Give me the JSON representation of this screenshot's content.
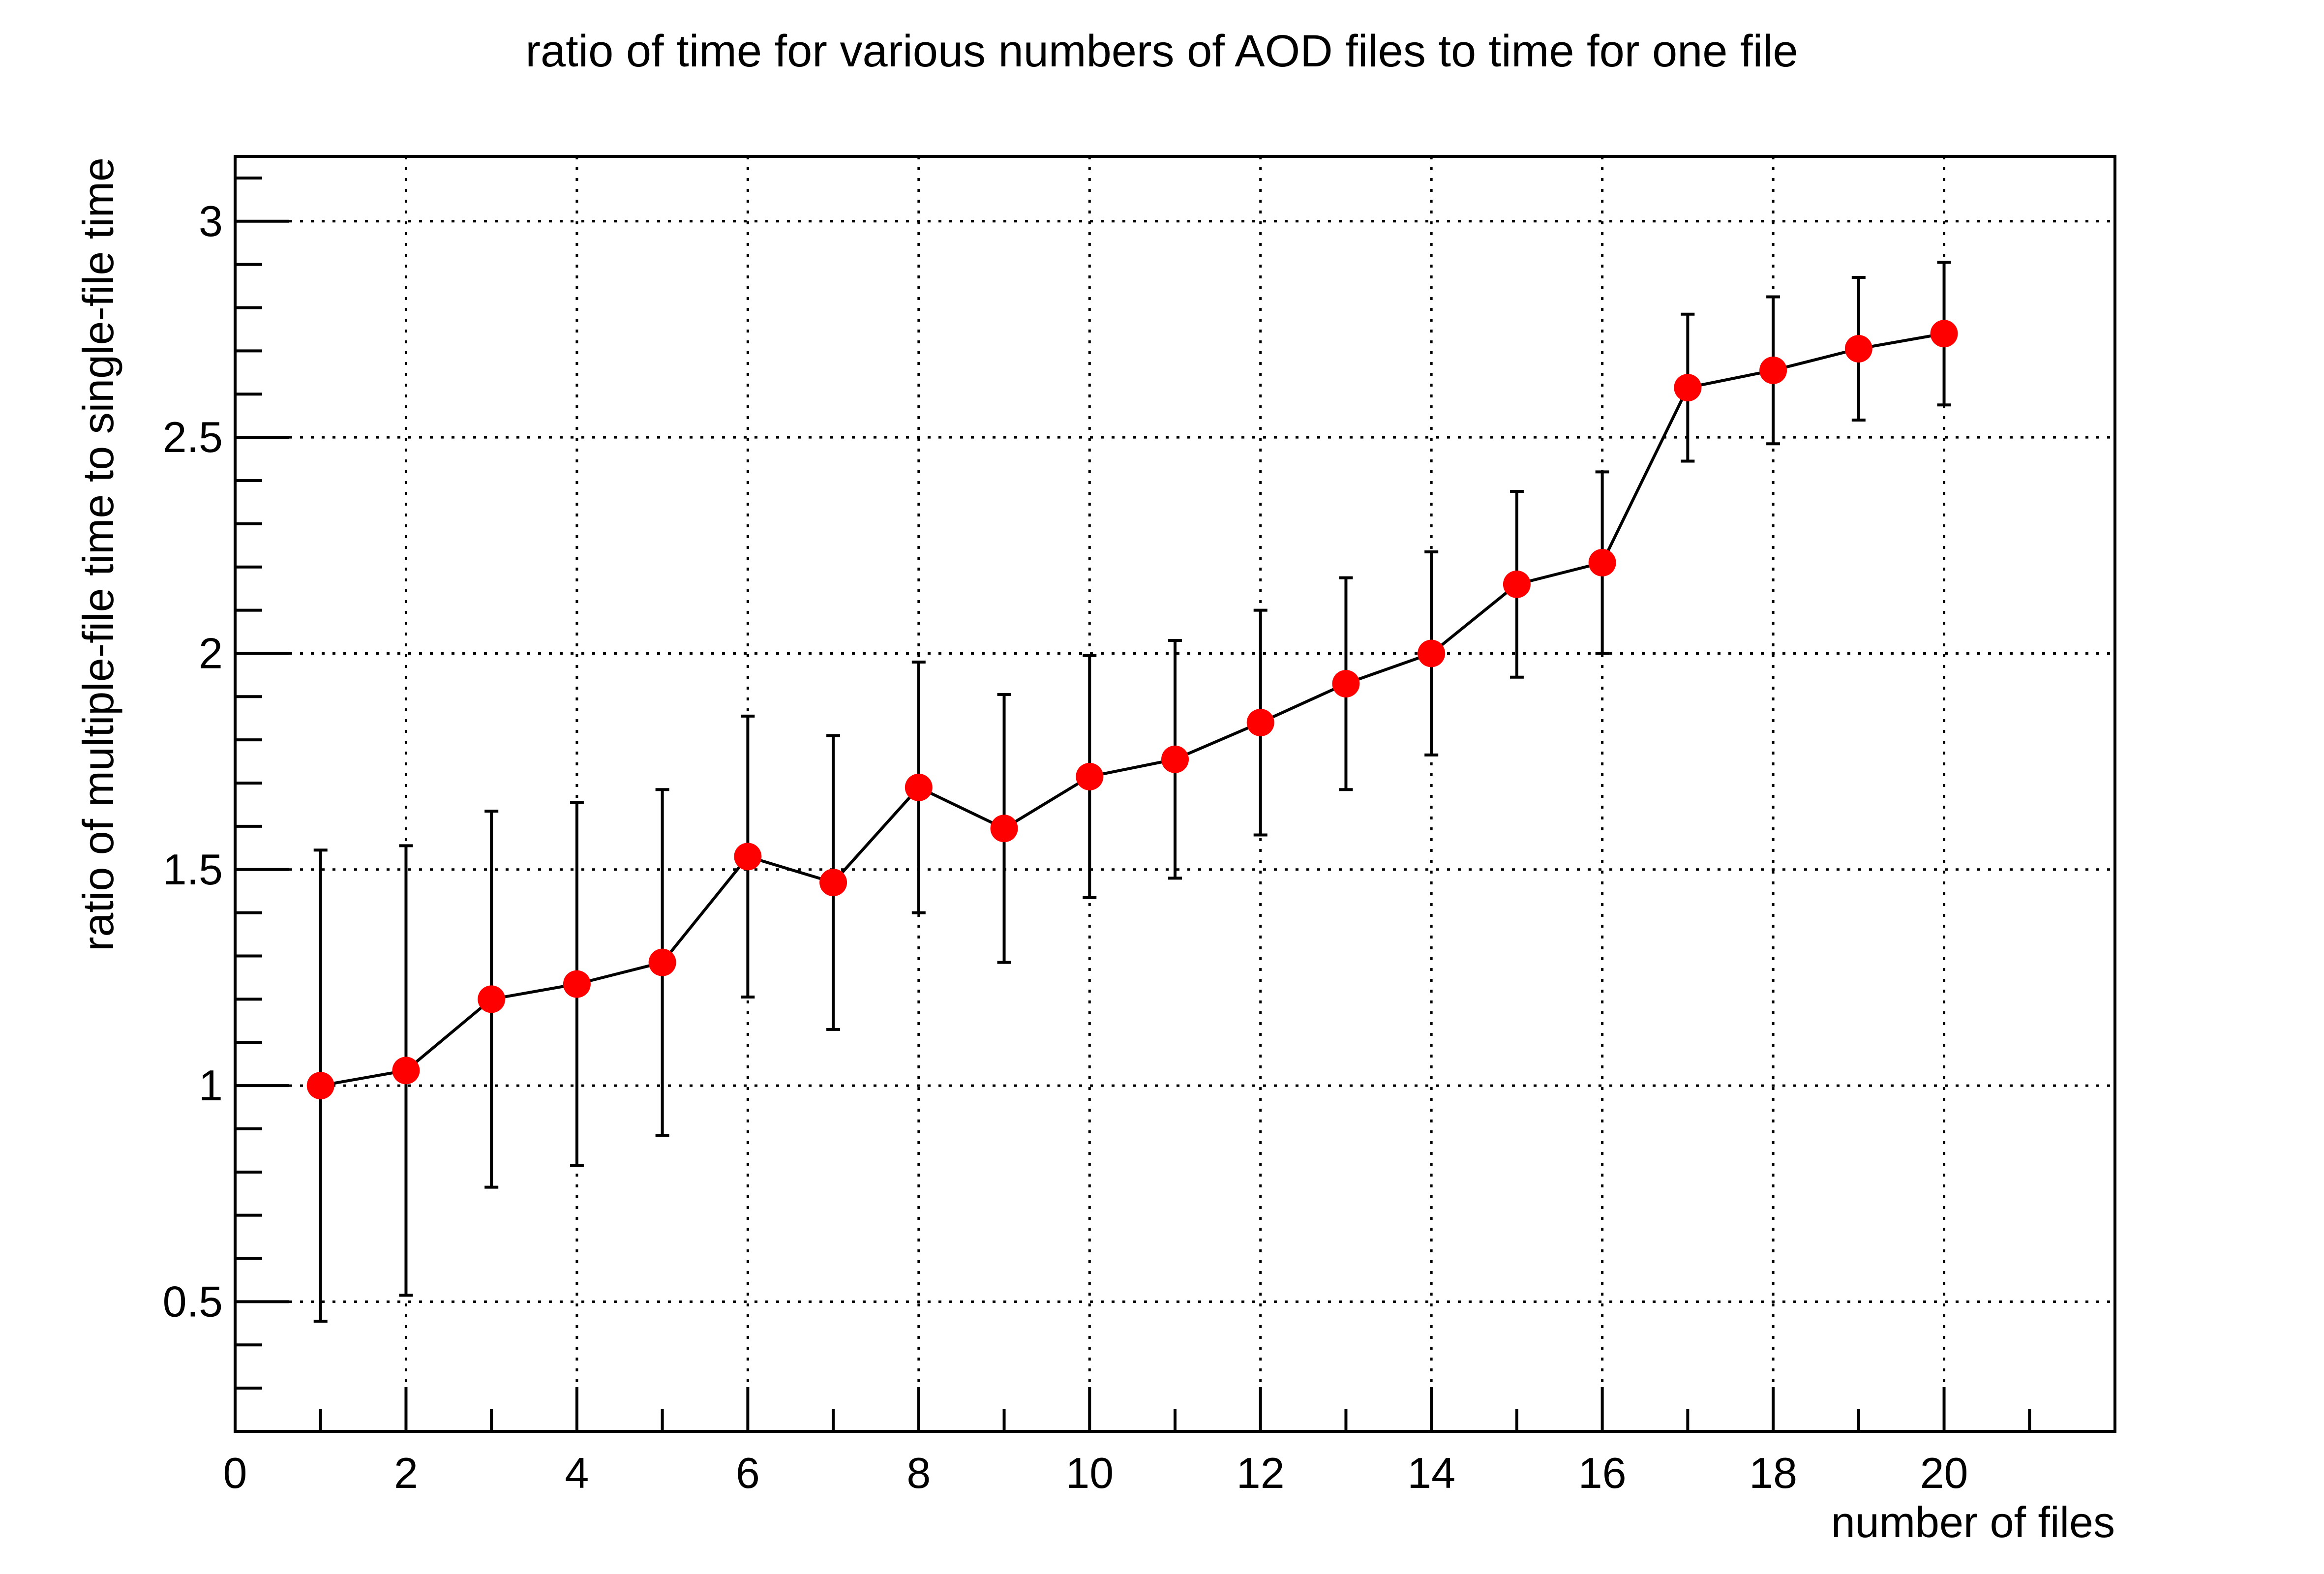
{
  "chart_data": {
    "type": "scatter",
    "title": "ratio of time for various numbers of AOD files to time for one file",
    "xlabel": "number of files",
    "ylabel": "ratio of multiple-file time to single-file time",
    "xlim": [
      0,
      22
    ],
    "ylim": [
      0.2,
      3.15
    ],
    "x_ticks": [
      {
        "value": 0,
        "label": "0"
      },
      {
        "value": 2,
        "label": "2"
      },
      {
        "value": 4,
        "label": "4"
      },
      {
        "value": 6,
        "label": "6"
      },
      {
        "value": 8,
        "label": "8"
      },
      {
        "value": 10,
        "label": "10"
      },
      {
        "value": 12,
        "label": "12"
      },
      {
        "value": 14,
        "label": "14"
      },
      {
        "value": 16,
        "label": "16"
      },
      {
        "value": 18,
        "label": "18"
      },
      {
        "value": 20,
        "label": "20"
      }
    ],
    "y_ticks": [
      {
        "value": 0.5,
        "label": "0.5"
      },
      {
        "value": 1,
        "label": "1"
      },
      {
        "value": 1.5,
        "label": "1.5"
      },
      {
        "value": 2,
        "label": "2"
      },
      {
        "value": 2.5,
        "label": "2.5"
      },
      {
        "value": 3,
        "label": "3"
      }
    ],
    "grid": true,
    "grid_style": "dotted",
    "connect_points": true,
    "marker_color": "#ff0000",
    "line_color": "#000000",
    "series": [
      {
        "points": [
          {
            "x": 1,
            "y": 1.0,
            "err_low": 0.455,
            "err_high": 1.545
          },
          {
            "x": 2,
            "y": 1.035,
            "err_low": 0.515,
            "err_high": 1.555
          },
          {
            "x": 3,
            "y": 1.2,
            "err_low": 0.765,
            "err_high": 1.635
          },
          {
            "x": 4,
            "y": 1.235,
            "err_low": 0.815,
            "err_high": 1.655
          },
          {
            "x": 5,
            "y": 1.285,
            "err_low": 0.885,
            "err_high": 1.685
          },
          {
            "x": 6,
            "y": 1.53,
            "err_low": 1.205,
            "err_high": 1.855
          },
          {
            "x": 7,
            "y": 1.47,
            "err_low": 1.13,
            "err_high": 1.81
          },
          {
            "x": 8,
            "y": 1.69,
            "err_low": 1.4,
            "err_high": 1.98
          },
          {
            "x": 9,
            "y": 1.595,
            "err_low": 1.285,
            "err_high": 1.905
          },
          {
            "x": 10,
            "y": 1.715,
            "err_low": 1.435,
            "err_high": 1.995
          },
          {
            "x": 11,
            "y": 1.755,
            "err_low": 1.48,
            "err_high": 2.03
          },
          {
            "x": 12,
            "y": 1.84,
            "err_low": 1.58,
            "err_high": 2.1
          },
          {
            "x": 13,
            "y": 1.93,
            "err_low": 1.685,
            "err_high": 2.175
          },
          {
            "x": 14,
            "y": 2.0,
            "err_low": 1.765,
            "err_high": 2.235
          },
          {
            "x": 15,
            "y": 2.16,
            "err_low": 1.945,
            "err_high": 2.375
          },
          {
            "x": 16,
            "y": 2.21,
            "err_low": 2.0,
            "err_high": 2.42
          },
          {
            "x": 17,
            "y": 2.615,
            "err_low": 2.445,
            "err_high": 2.785
          },
          {
            "x": 18,
            "y": 2.655,
            "err_low": 2.485,
            "err_high": 2.825
          },
          {
            "x": 19,
            "y": 2.705,
            "err_low": 2.54,
            "err_high": 2.87
          },
          {
            "x": 20,
            "y": 2.74,
            "err_low": 2.575,
            "err_high": 2.905
          }
        ]
      }
    ]
  }
}
